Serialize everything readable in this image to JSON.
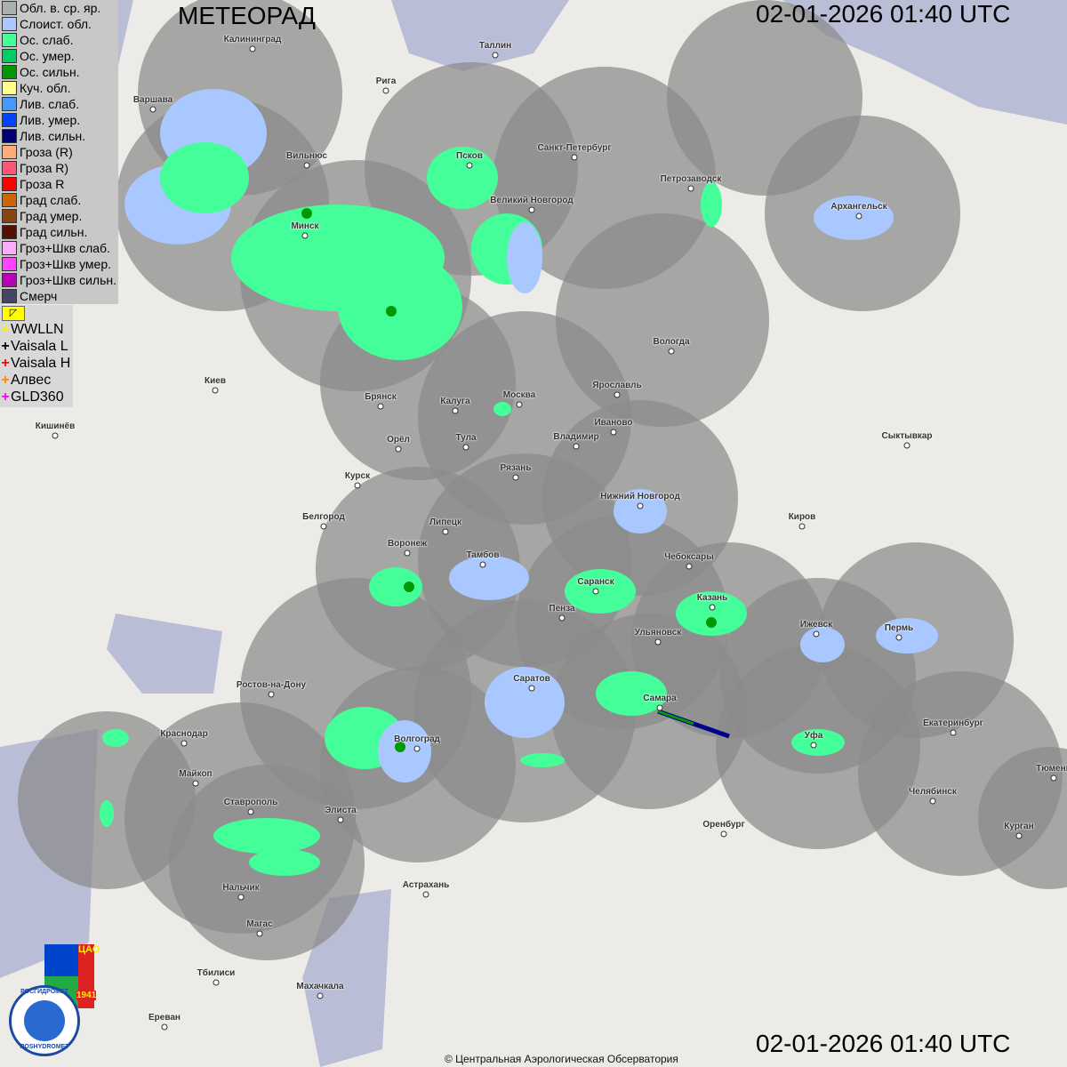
{
  "header": {
    "title": "МЕТЕОРАД",
    "timestamp_top": "02-01-2026  01:40 UTC",
    "timestamp_bottom": "02-01-2026  01:40 UTC"
  },
  "legend": [
    {
      "label": "Обл. в. ср. яр.",
      "color": "#a8b0b0"
    },
    {
      "label": "Слоист. обл.",
      "color": "#a8c8ff"
    },
    {
      "label": "Ос. слаб.",
      "color": "#44ff99"
    },
    {
      "label": "Ос. умер.",
      "color": "#00cc66"
    },
    {
      "label": "Ос. сильн.",
      "color": "#009900"
    },
    {
      "label": "Куч. обл.",
      "color": "#ffff88"
    },
    {
      "label": "Лив. слаб.",
      "color": "#4499ff"
    },
    {
      "label": "Лив. умер.",
      "color": "#0044ff"
    },
    {
      "label": "Лив. сильн.",
      "color": "#000077"
    },
    {
      "label": "Гроза (R)",
      "color": "#ffaa77"
    },
    {
      "label": "Гроза R)",
      "color": "#ff5577"
    },
    {
      "label": "Гроза R",
      "color": "#ff0000"
    },
    {
      "label": "Град слаб.",
      "color": "#cc6600"
    },
    {
      "label": "Град умер.",
      "color": "#884411"
    },
    {
      "label": "Град сильн.",
      "color": "#551100"
    },
    {
      "label": "Гроз+Шкв слаб.",
      "color": "#ffaaff"
    },
    {
      "label": "Гроз+Шкв умер.",
      "color": "#ff44ff"
    },
    {
      "label": "Гроз+Шкв сильн.",
      "color": "#bb00bb"
    },
    {
      "label": "Смерч",
      "color": "#444466"
    }
  ],
  "lightning": [
    {
      "label": "WWLLN",
      "color": "#ffee00"
    },
    {
      "label": "Vaisala L",
      "color": "#000000"
    },
    {
      "label": "Vaisala H",
      "color": "#ff0000"
    },
    {
      "label": "Алвес",
      "color": "#ff8800"
    },
    {
      "label": "GLD360",
      "color": "#ff00ff"
    }
  ],
  "cities": [
    "Калининград",
    "Таллин",
    "Рига",
    "Варшава",
    "Вильнюс",
    "Псков",
    "Санкт-Петербург",
    "Петрозаводск",
    "Архангельск",
    "Великий Новгород",
    "Минск",
    "Вологда",
    "Ярославль",
    "Москва",
    "Калуга",
    "Брянск",
    "Киев",
    "Иваново",
    "Владимир",
    "Тула",
    "Орёл",
    "Сыктывкар",
    "Кишинёв",
    "Рязань",
    "Курск",
    "Нижний Новгород",
    "Белгород",
    "Киров",
    "Липецк",
    "Воронеж",
    "Тамбов",
    "Чебоксары",
    "Саранск",
    "Казань",
    "Пенза",
    "Ульяновск",
    "Ижевск",
    "Пермь",
    "Ростов-на-Дону",
    "Саратов",
    "Самара",
    "Уфа",
    "Екатеринбург",
    "Краснодар",
    "Волгоград",
    "Майкоп",
    "Тюмень",
    "Челябинск",
    "Ставрополь",
    "Элиста",
    "Оренбург",
    "Курган",
    "Астрахань",
    "Нальчик",
    "Магас",
    "Тбилиси",
    "Махачкала",
    "Ереван"
  ],
  "logos": {
    "cao": "ЦАО",
    "year": "1941",
    "roshydromet_ru": "РОСГИДРОМЕТ",
    "roshydromet_en": "ROSHYDROMET"
  },
  "copyright": "© Центральная Аэрологическая Обсерватория"
}
